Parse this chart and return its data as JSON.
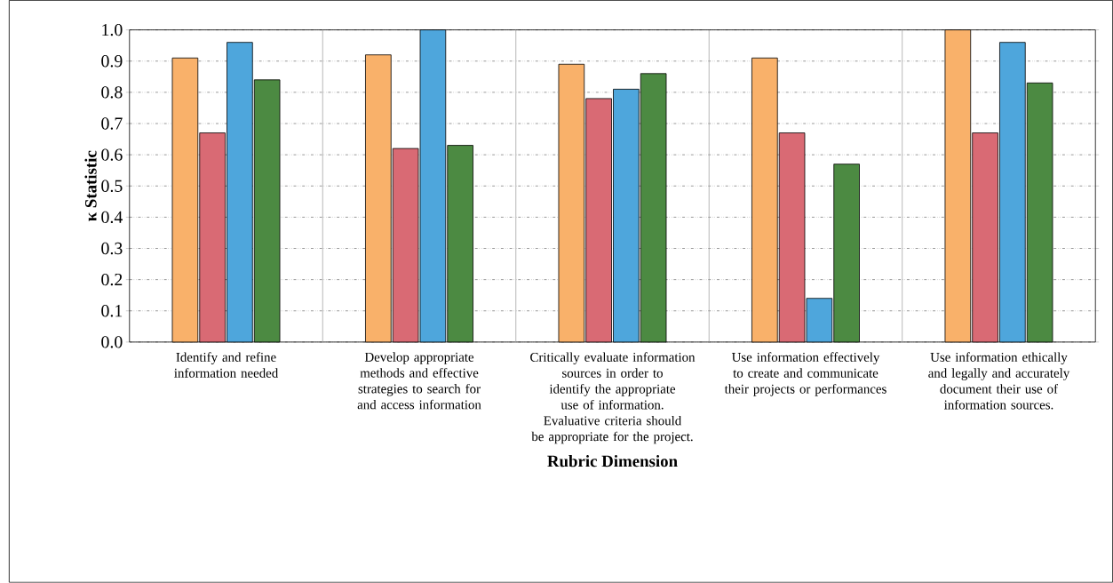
{
  "chart_data": {
    "type": "bar",
    "xlabel": "Rubric Dimension",
    "ylabel": "κ Statistic",
    "categories": [
      "Identify and refine information needed",
      "Develop appropriate methods and effective strategies to search for and access information",
      "Critically evaluate information sources in order to identify the appropriate use of information.  Evaluative criteria should be appropriate for the project.",
      "Use information effectively to create and communicate their projects or performances",
      "Use information ethically and legally and accurately document their use of information sources."
    ],
    "series": [
      {
        "color": "#f9b16a",
        "values": [
          0.91,
          0.92,
          0.89,
          0.91,
          1.0
        ]
      },
      {
        "color": "#d96a74",
        "values": [
          0.67,
          0.62,
          0.78,
          0.67,
          0.67
        ]
      },
      {
        "color": "#4ea6dc",
        "values": [
          0.96,
          1.0,
          0.81,
          0.14,
          0.96
        ]
      },
      {
        "color": "#4c8a42",
        "values": [
          0.84,
          0.63,
          0.86,
          0.57,
          0.83
        ]
      }
    ],
    "ylim": [
      0,
      1.0
    ],
    "yticks": [
      {
        "value": 0,
        "label": "0.0"
      },
      {
        "value": 0.1,
        "label": "0.1"
      },
      {
        "value": 0.2,
        "label": "0.2"
      },
      {
        "value": 0.3,
        "label": "0.3"
      },
      {
        "value": 0.4,
        "label": "0.4"
      },
      {
        "value": 0.5,
        "label": "0.5"
      },
      {
        "value": 0.6,
        "label": "0.6"
      },
      {
        "value": 0.7,
        "label": "0.7"
      },
      {
        "value": 0.8,
        "label": "0.8"
      },
      {
        "value": 0.9,
        "label": "0.9"
      },
      {
        "value": 1.0,
        "label": "1.0"
      }
    ],
    "grid": true
  }
}
